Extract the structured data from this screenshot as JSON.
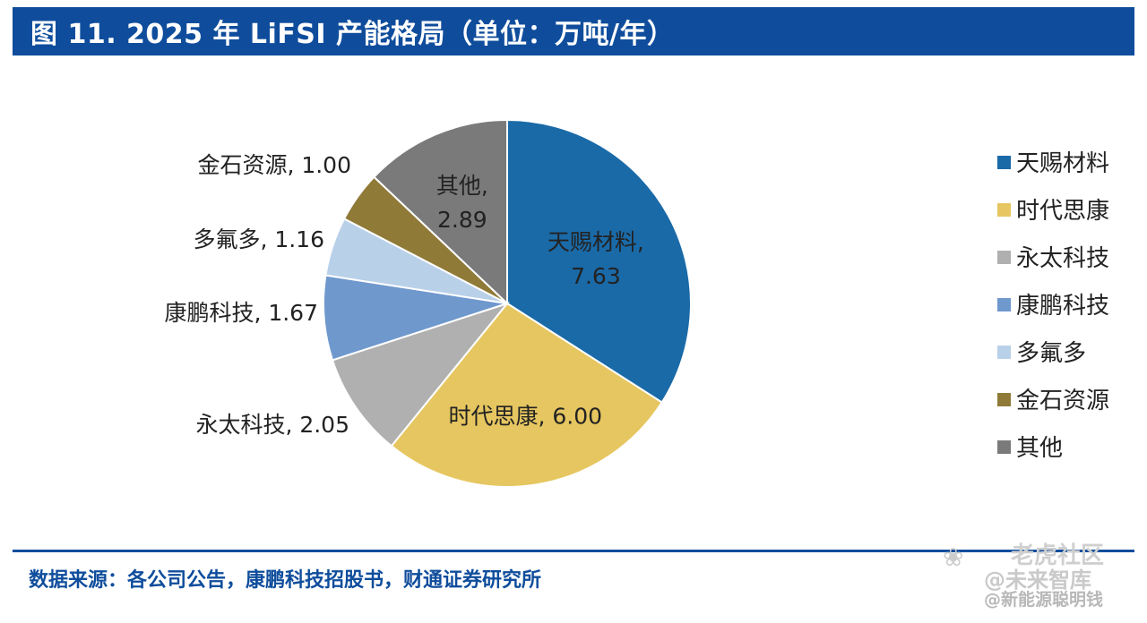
{
  "title": "图 11. 2025 年 LiFSI 产能格局（单位：万吨/年）",
  "source": "数据来源：各公司公告，康鹏科技招股书，财通证券研究所",
  "watermark": {
    "line1": "老虎社区",
    "line2": "@未来智库",
    "line3": "@新能源聪明钱"
  },
  "chart_data": {
    "type": "pie",
    "title": "",
    "slices": [
      {
        "name": "天赐材料",
        "value": 7.63,
        "value_label": "7.63",
        "color": "#1a6aa8"
      },
      {
        "name": "时代思康",
        "value": 6.0,
        "value_label": "6.00",
        "color": "#e6c660"
      },
      {
        "name": "永太科技",
        "value": 2.05,
        "value_label": "2.05",
        "color": "#b0b0b0"
      },
      {
        "name": "康鹏科技",
        "value": 1.67,
        "value_label": "1.67",
        "color": "#6f98cd"
      },
      {
        "name": "多氟多",
        "value": 1.16,
        "value_label": "1.16",
        "color": "#b9d0e9"
      },
      {
        "name": "金石资源",
        "value": 1.0,
        "value_label": "1.00",
        "color": "#8f7a38"
      },
      {
        "name": "其他",
        "value": 2.89,
        "value_label": "2.89",
        "color": "#7a7a7a"
      }
    ],
    "legend_position": "right",
    "start_angle_deg": 0,
    "direction": "clockwise"
  }
}
